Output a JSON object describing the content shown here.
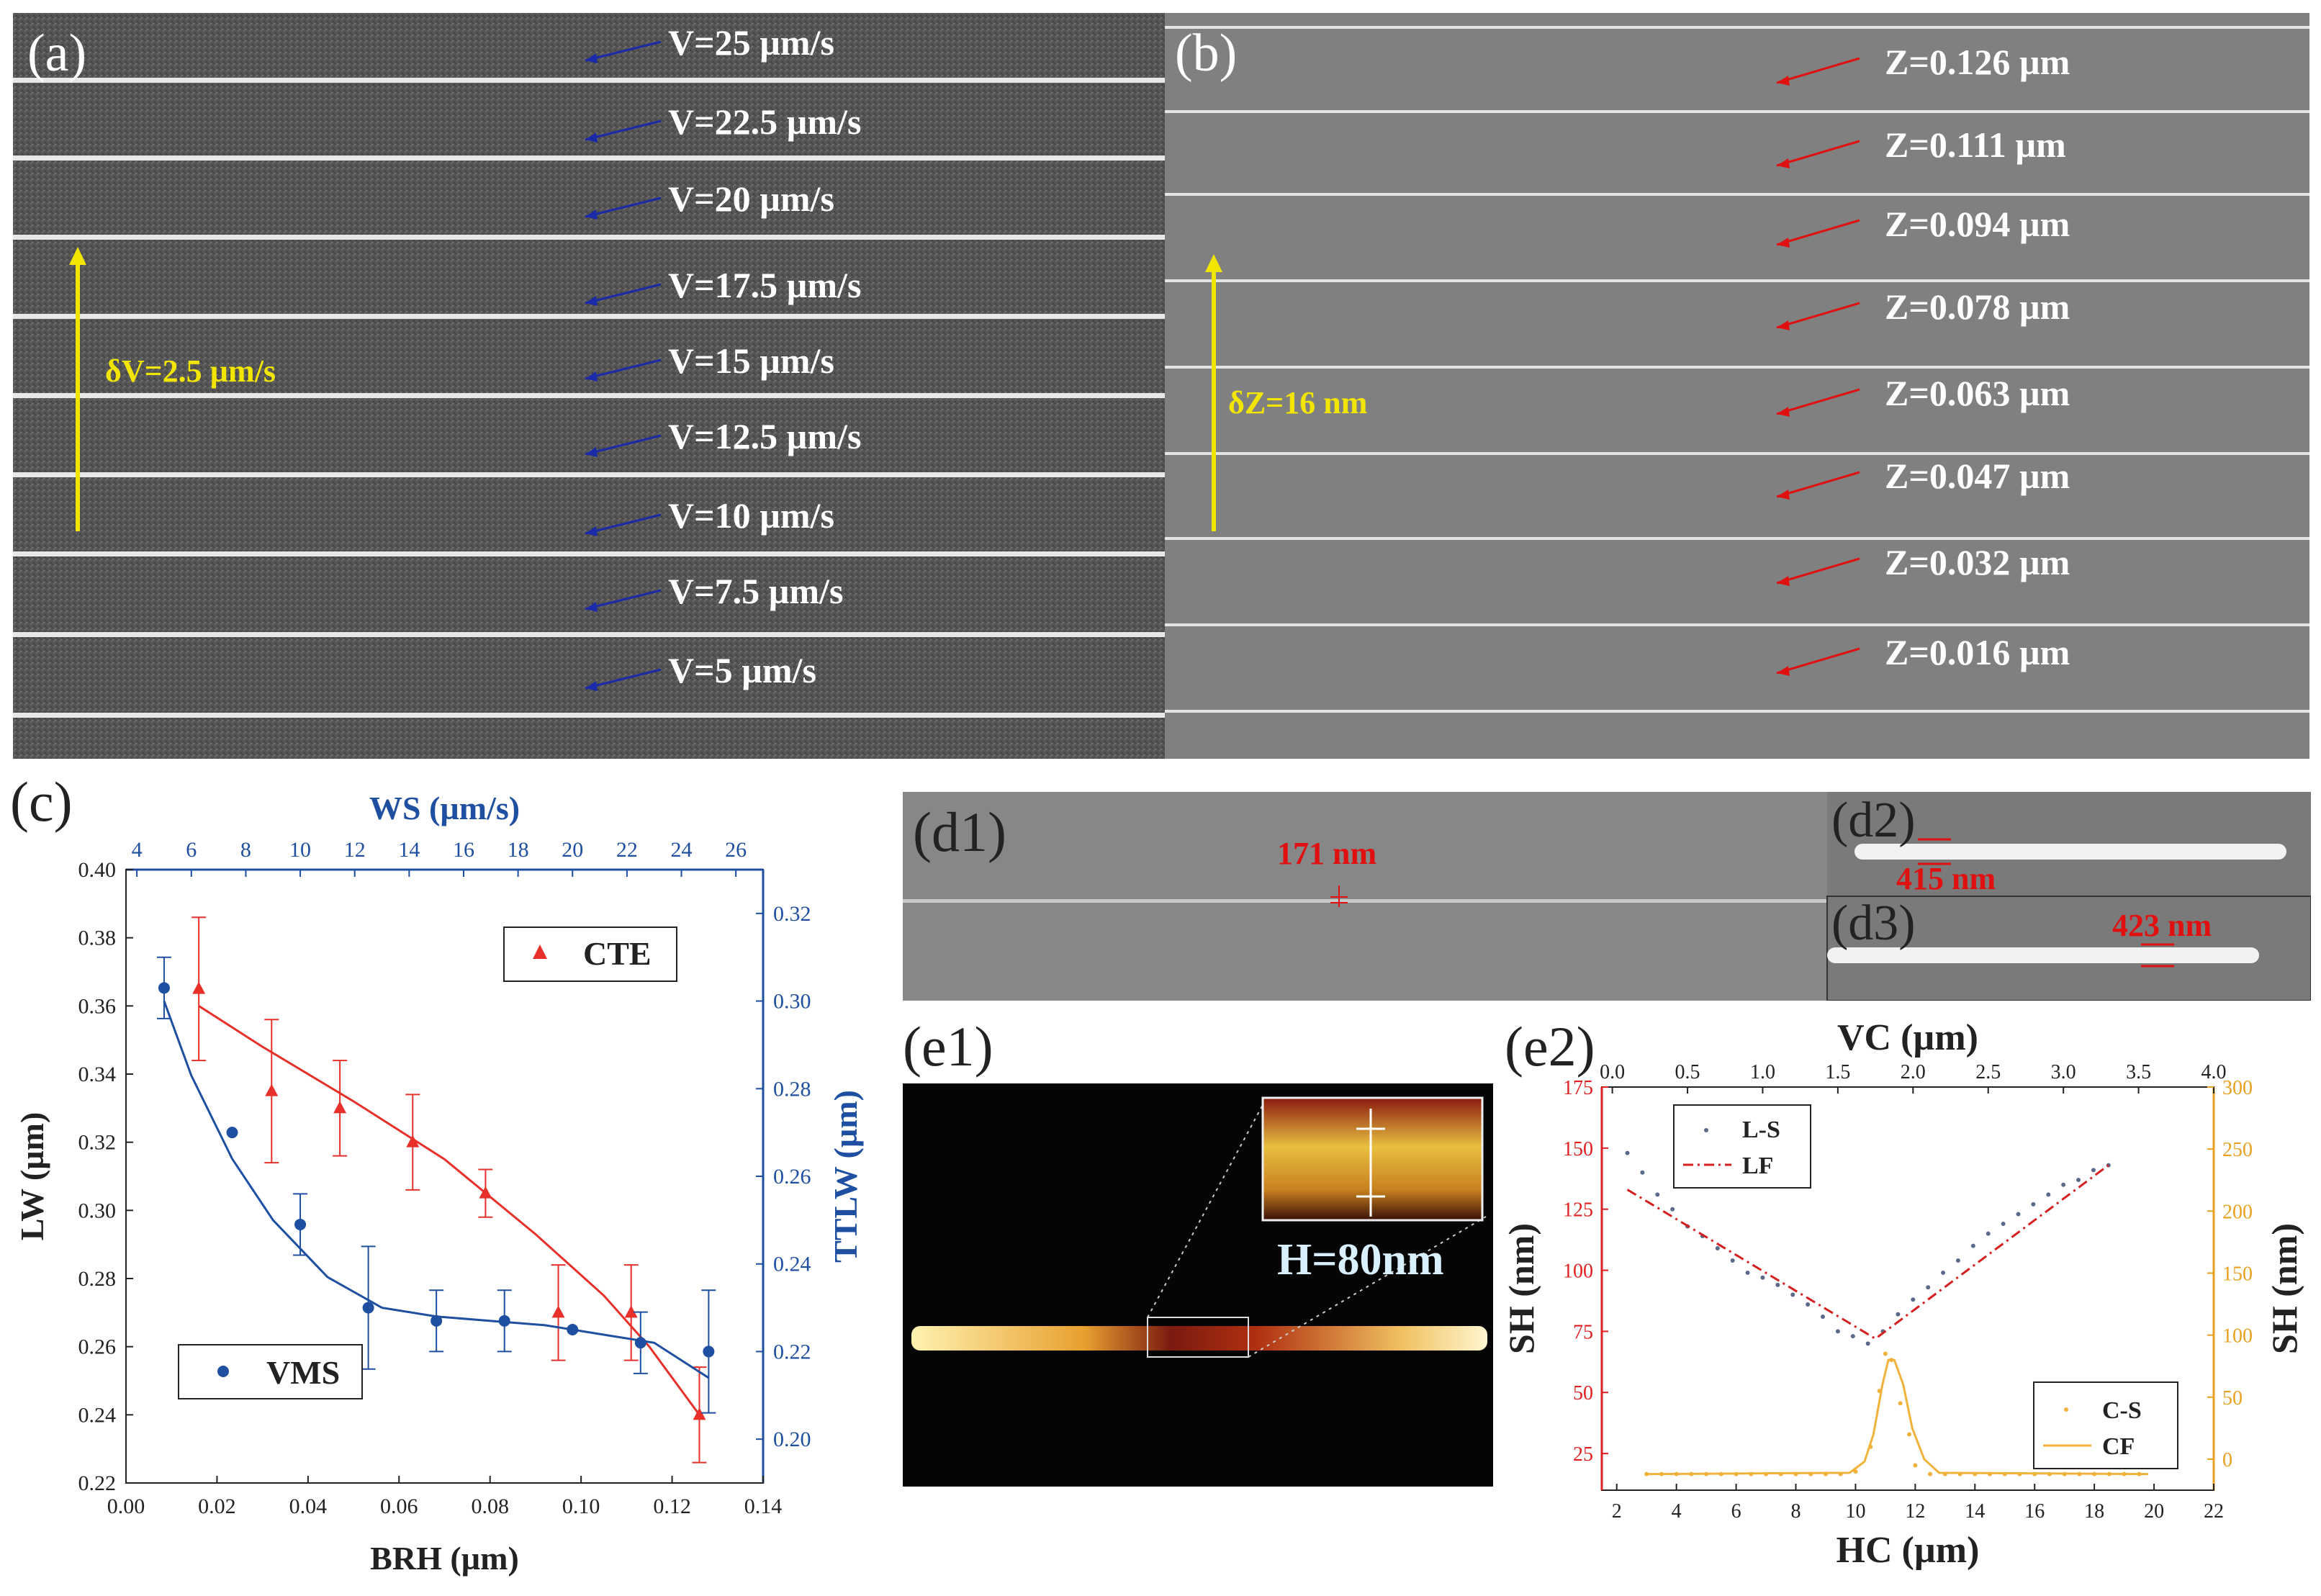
{
  "panel_a": {
    "label": "(a)",
    "scale_label": "δV=2.5 µm/s",
    "speeds": [
      "V=25 µm/s",
      "V=22.5 µm/s",
      "V=20 µm/s",
      "V=17.5 µm/s",
      "V=15 µm/s",
      "V=12.5 µm/s",
      "V=10 µm/s",
      "V=7.5 µm/s",
      "V=5 µm/s"
    ],
    "colors": {
      "annotation": "#ffffff",
      "arrow": "#1a2aa8",
      "scale": "#f2e600"
    }
  },
  "panel_b": {
    "label": "(b)",
    "scale_label": "δZ=16 nm",
    "heights": [
      "Z=0.126 µm",
      "Z=0.111 µm",
      "Z=0.094 µm",
      "Z=0.078 µm",
      "Z=0.063 µm",
      "Z=0.047 µm",
      "Z=0.032 µm",
      "Z=0.016 µm"
    ],
    "colors": {
      "arrow": "#e01010",
      "scale": "#f2e600"
    }
  },
  "panel_c": {
    "label": "(c)",
    "chart_data": {
      "type": "scatter",
      "title": "",
      "xlabel": "BRH (µm)",
      "ylabel": "LW (µm)",
      "x2label": "WS (µm/s)",
      "y2label": "TTLW (µm)",
      "xlim": [
        0.0,
        0.14
      ],
      "ylim": [
        0.22,
        0.4
      ],
      "x2lim": [
        3.6,
        27.0
      ],
      "y2lim": [
        0.19,
        0.33
      ],
      "xticks": [
        "0.00",
        "0.02",
        "0.04",
        "0.06",
        "0.08",
        "0.10",
        "0.12",
        "0.14"
      ],
      "yticks": [
        "0.22",
        "0.24",
        "0.26",
        "0.28",
        "0.30",
        "0.32",
        "0.34",
        "0.36",
        "0.38",
        "0.40"
      ],
      "x2ticks": [
        "4",
        "6",
        "8",
        "10",
        "12",
        "14",
        "16",
        "18",
        "20",
        "22",
        "24",
        "26"
      ],
      "y2ticks": [
        "0.20",
        "0.22",
        "0.24",
        "0.26",
        "0.28",
        "0.30",
        "0.32"
      ],
      "series": [
        {
          "name": "CTE",
          "color": "#e8302a",
          "marker": "triangle",
          "axis": "bottom-left",
          "x": [
            0.016,
            0.032,
            0.047,
            0.063,
            0.079,
            0.095,
            0.111,
            0.126
          ],
          "y": [
            0.365,
            0.335,
            0.33,
            0.32,
            0.305,
            0.27,
            0.27,
            0.24
          ],
          "err": [
            0.021,
            0.021,
            0.014,
            0.014,
            0.007,
            0.014,
            0.014,
            0.014
          ],
          "fit_x": [
            0.016,
            0.03,
            0.05,
            0.07,
            0.09,
            0.105,
            0.115,
            0.126
          ],
          "fit_y": [
            0.36,
            0.348,
            0.332,
            0.315,
            0.293,
            0.275,
            0.26,
            0.24
          ]
        },
        {
          "name": "VMS",
          "color": "#1f4fa0",
          "marker": "circle",
          "axis": "top-right",
          "x": [
            5,
            7.5,
            10,
            12.5,
            15,
            17.5,
            20,
            22.5,
            25
          ],
          "y": [
            0.303,
            0.27,
            0.249,
            0.23,
            0.227,
            0.227,
            0.225,
            0.222,
            0.22
          ],
          "err": [
            0.007,
            0,
            0.007,
            0.014,
            0.007,
            0.007,
            0,
            0.007,
            0.014
          ],
          "fit_x": [
            5,
            6,
            7.5,
            9,
            11,
            13,
            15,
            17,
            19,
            21,
            23,
            25
          ],
          "fit_y": [
            0.3,
            0.283,
            0.264,
            0.25,
            0.237,
            0.23,
            0.228,
            0.227,
            0.226,
            0.224,
            0.222,
            0.214
          ]
        }
      ]
    }
  },
  "panel_d": {
    "d1_label": "(d1)",
    "d1_value": "171 nm",
    "d2_label": "(d2)",
    "d2_value": "415 nm",
    "d3_label": "(d3)",
    "d3_value": "423 nm"
  },
  "panel_e1": {
    "label": "(e1)",
    "height_label": "H=80nm"
  },
  "panel_e2": {
    "label": "(e2)",
    "chart_data": {
      "type": "line",
      "title": "",
      "xlabel": "HC (µm)",
      "x2label": "VC (µm)",
      "ylabel": "SH (nm)",
      "y2label": "SH (nm)",
      "xlim": [
        1.5,
        22.0
      ],
      "x2lim": [
        -0.07,
        4.0
      ],
      "ylim": [
        10,
        175
      ],
      "y2lim": [
        -25,
        300
      ],
      "xticks": [
        "2",
        "4",
        "6",
        "8",
        "10",
        "12",
        "14",
        "16",
        "18",
        "20",
        "22"
      ],
      "x2ticks": [
        "0.0",
        "0.5",
        "1.0",
        "1.5",
        "2.0",
        "2.5",
        "3.0",
        "3.5",
        "4.0"
      ],
      "yticks": [
        "25",
        "50",
        "75",
        "100",
        "125",
        "150",
        "175"
      ],
      "y2ticks": [
        "0",
        "50",
        "100",
        "150",
        "200",
        "250",
        "300"
      ],
      "series": [
        {
          "name": "L-S",
          "color": "#5a6a8a",
          "marker": "dot",
          "axis": "top-left",
          "x": [
            0.1,
            0.2,
            0.3,
            0.4,
            0.5,
            0.6,
            0.7,
            0.8,
            0.9,
            1.0,
            1.1,
            1.2,
            1.3,
            1.4,
            1.5,
            1.6,
            1.7,
            1.8,
            1.9,
            2.0,
            2.1,
            2.2,
            2.3,
            2.4,
            2.5,
            2.6,
            2.7,
            2.8,
            2.9,
            3.0,
            3.1,
            3.2,
            3.3
          ],
          "y": [
            148,
            140,
            131,
            125,
            118,
            114,
            109,
            104,
            99,
            97,
            94,
            90,
            86,
            81,
            75,
            73,
            70,
            75,
            82,
            88,
            93,
            99,
            104,
            110,
            115,
            119,
            123,
            127,
            131,
            135,
            137,
            141,
            143
          ]
        },
        {
          "name": "LF",
          "color": "#d42020",
          "marker": "dashdot",
          "axis": "top-left",
          "x": [
            0.1,
            1.75,
            3.3
          ],
          "y": [
            133,
            72,
            143
          ]
        },
        {
          "name": "C-S",
          "color": "#f0b23a",
          "marker": "dot",
          "axis": "bottom-right",
          "x": [
            3,
            3.5,
            4,
            4.5,
            5,
            5.5,
            6,
            6.5,
            7,
            7.5,
            8,
            8.5,
            9,
            9.5,
            10,
            10.5,
            10.8,
            11,
            11.2,
            11.5,
            11.8,
            12,
            12.5,
            13,
            13.5,
            14,
            14.5,
            15,
            15.5,
            16,
            16.5,
            17,
            17.5,
            18,
            18.5,
            19,
            19.5
          ],
          "y": [
            -12,
            -12,
            -12,
            -12,
            -12,
            -12,
            -12,
            -12,
            -12,
            -12,
            -12,
            -12,
            -12,
            -12,
            -10,
            10,
            55,
            85,
            80,
            45,
            20,
            -5,
            -12,
            -12,
            -12,
            -12,
            -12,
            -12,
            -12,
            -12,
            -12,
            -12,
            -12,
            -12,
            -12,
            -12,
            -12
          ]
        },
        {
          "name": "CF",
          "color": "#f0b23a",
          "marker": "line",
          "axis": "bottom-right",
          "x": [
            3,
            9.8,
            10.3,
            10.6,
            10.9,
            11.1,
            11.3,
            11.6,
            11.9,
            12.3,
            12.8,
            19.8
          ],
          "y": [
            -12,
            -11,
            -2,
            20,
            60,
            80,
            80,
            60,
            25,
            0,
            -11,
            -12
          ]
        }
      ]
    }
  }
}
